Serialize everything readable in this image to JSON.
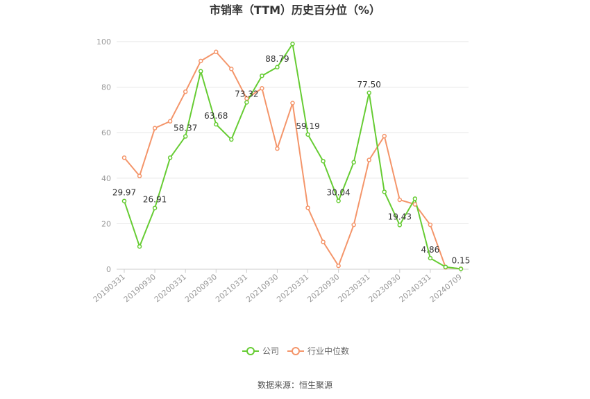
{
  "chart_data": {
    "type": "line",
    "title": "市销率（TTM）历史百分位（%）",
    "xlabel": "",
    "ylabel": "",
    "ylim": [
      0,
      100
    ],
    "yticks": [
      0,
      20,
      40,
      60,
      80,
      100
    ],
    "grid": true,
    "legend_position": "bottom",
    "x": [
      "20190331",
      "20190630",
      "20190930",
      "20191231",
      "20200331",
      "20200630",
      "20200930",
      "20201231",
      "20210331",
      "20210630",
      "20210930",
      "20211231",
      "20220331",
      "20220630",
      "20220930",
      "20221231",
      "20230331",
      "20230630",
      "20230930",
      "20231231",
      "20240331",
      "20240630",
      "20240709"
    ],
    "xtick_labels": [
      "20190331",
      "20190930",
      "20200331",
      "20200930",
      "20210331",
      "20210930",
      "20220331",
      "20220930",
      "20230331",
      "20230930",
      "20240331",
      "20240709"
    ],
    "series": [
      {
        "name": "公司",
        "color": "#66cc33",
        "values": [
          29.97,
          10.0,
          26.91,
          49.0,
          58.37,
          87.0,
          63.68,
          57.0,
          73.32,
          85.0,
          88.79,
          99.0,
          59.19,
          47.5,
          30.04,
          47.0,
          77.5,
          34.0,
          19.43,
          31.0,
          4.86,
          1.0,
          0.15
        ]
      },
      {
        "name": "行业中位数",
        "color": "#f4956a",
        "values": [
          49.0,
          41.0,
          62.0,
          65.0,
          78.0,
          91.5,
          95.5,
          88.0,
          75.0,
          79.5,
          53.0,
          73.0,
          27.0,
          12.0,
          1.5,
          19.5,
          48.0,
          58.5,
          30.5,
          28.5,
          19.5,
          0.8,
          0.2
        ]
      }
    ],
    "data_labels": [
      {
        "series": 0,
        "index": 0,
        "text": "29.97"
      },
      {
        "series": 0,
        "index": 2,
        "text": "26.91"
      },
      {
        "series": 0,
        "index": 4,
        "text": "58.37"
      },
      {
        "series": 0,
        "index": 6,
        "text": "63.68"
      },
      {
        "series": 0,
        "index": 8,
        "text": "73.32"
      },
      {
        "series": 0,
        "index": 10,
        "text": "88.79"
      },
      {
        "series": 0,
        "index": 12,
        "text": "59.19"
      },
      {
        "series": 0,
        "index": 14,
        "text": "30.04"
      },
      {
        "series": 0,
        "index": 16,
        "text": "77.50"
      },
      {
        "series": 0,
        "index": 18,
        "text": "19.43"
      },
      {
        "series": 0,
        "index": 20,
        "text": "4.86"
      },
      {
        "series": 0,
        "index": 22,
        "text": "0.15"
      }
    ]
  },
  "source_text": "数据来源：恒生聚源"
}
